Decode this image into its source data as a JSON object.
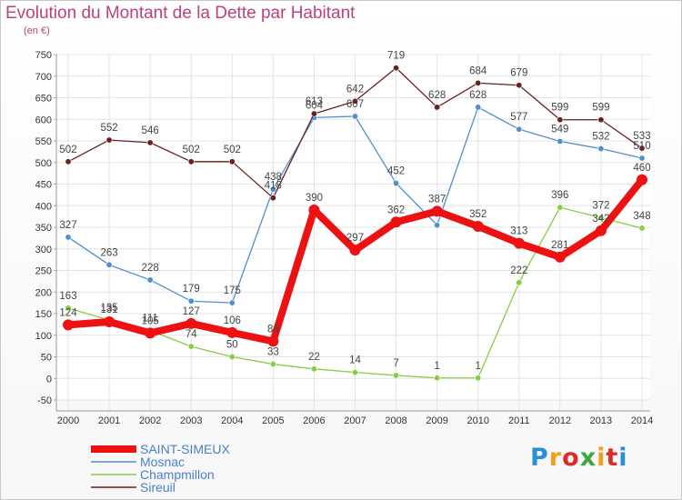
{
  "header": {
    "title": "Evolution du Montant de la Dette par Habitant",
    "unit": "(en €)"
  },
  "logo": {
    "text": "Proxiti",
    "colors": [
      "#2b8fd8",
      "#f0a020",
      "#e02a2a",
      "#3aa83a",
      "#f0a020",
      "#e02a2a",
      "#2b8fd8"
    ]
  },
  "chart_data": {
    "type": "line",
    "title": "Evolution du Montant de la Dette par Habitant",
    "subtitle": "(en €)",
    "x": [
      "2000",
      "2001",
      "2002",
      "2003",
      "2004",
      "2005",
      "2006",
      "2007",
      "2008",
      "2009",
      "2010",
      "2011",
      "2012",
      "2013",
      "2014"
    ],
    "ylim": [
      -50,
      750
    ],
    "yticks": [
      -50,
      0,
      50,
      100,
      150,
      200,
      250,
      300,
      350,
      400,
      450,
      500,
      550,
      600,
      650,
      700,
      750
    ],
    "grid": true,
    "legend_position": "bottom-left",
    "series": [
      {
        "name": "SAINT-SIMEUX",
        "color": "#ee1111",
        "values": [
          124,
          131,
          105,
          127,
          106,
          86,
          390,
          297,
          362,
          387,
          352,
          313,
          281,
          342,
          460
        ],
        "labels": [
          "124",
          "131",
          "105",
          "127",
          "106",
          "86",
          "390",
          "297",
          "362",
          "387",
          "352",
          "313",
          "281",
          "342",
          "460"
        ]
      },
      {
        "name": "Mosnac",
        "color": "#4f8fcf",
        "values": [
          327,
          263,
          228,
          179,
          175,
          438,
          604,
          607,
          452,
          355,
          628,
          577,
          549,
          532,
          510
        ],
        "labels": [
          "327",
          "263",
          "228",
          "179",
          "175",
          "438",
          "604",
          "607",
          "452",
          "",
          "628",
          "577",
          "549",
          "532",
          "510"
        ]
      },
      {
        "name": "Champmillon",
        "color": "#88cc44",
        "values": [
          163,
          135,
          111,
          74,
          50,
          33,
          22,
          14,
          7,
          1,
          1,
          222,
          396,
          372,
          348
        ],
        "labels": [
          "163",
          "135",
          "111",
          "74",
          "50",
          "33",
          "22",
          "14",
          "7",
          "1",
          "1",
          "222",
          "396",
          "372",
          "348"
        ]
      },
      {
        "name": "Sireuil",
        "color": "#6b1f1f",
        "values": [
          502,
          552,
          546,
          502,
          502,
          418,
          613,
          642,
          719,
          628,
          684,
          679,
          599,
          599,
          533
        ],
        "labels": [
          "502",
          "552",
          "546",
          "502",
          "502",
          "418",
          "613",
          "642",
          "719",
          "628",
          "684",
          "679",
          "599",
          "599",
          "533"
        ]
      }
    ]
  }
}
